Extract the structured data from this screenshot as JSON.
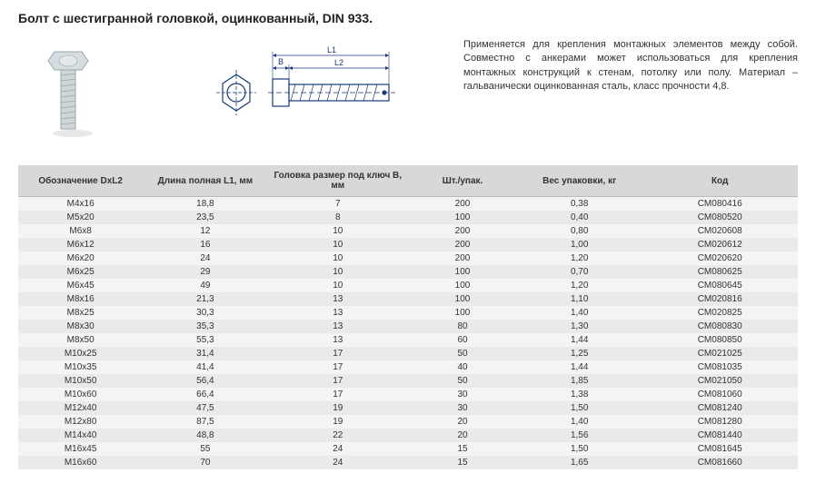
{
  "title": "Болт с шестигранной головкой, оцинкованный, DIN 933.",
  "description": "Применяется для крепления монтажных элементов между собой. Совместно с анкерами может использоваться для крепления монтажных конструкций к стенам, потолку или полу. Материал – гальванически оцинкованная сталь, класс прочности 4,8.",
  "diagram_labels": {
    "B": "B",
    "L1": "L1",
    "L2": "L2"
  },
  "table": {
    "columns": [
      "Обозначение DxL2",
      "Длина полная L1, мм",
      "Головка размер под ключ B, мм",
      "Шт./упак.",
      "Вес упаковки, кг",
      "Код"
    ],
    "col_widths": [
      "16%",
      "16%",
      "18%",
      "14%",
      "16%",
      "20%"
    ],
    "header_bg": "#d8d8d8",
    "row_odd_bg": "#f4f4f4",
    "row_even_bg": "#eaeaea",
    "rows": [
      [
        "M4x16",
        "18,8",
        "7",
        "200",
        "0,38",
        "CM080416"
      ],
      [
        "M5x20",
        "23,5",
        "8",
        "100",
        "0,40",
        "CM080520"
      ],
      [
        "M6x8",
        "12",
        "10",
        "200",
        "0,80",
        "CM020608"
      ],
      [
        "M6x12",
        "16",
        "10",
        "200",
        "1,00",
        "CM020612"
      ],
      [
        "M6x20",
        "24",
        "10",
        "200",
        "1,20",
        "CM020620"
      ],
      [
        "M6x25",
        "29",
        "10",
        "100",
        "0,70",
        "CM080625"
      ],
      [
        "M6x45",
        "49",
        "10",
        "100",
        "1,20",
        "CM080645"
      ],
      [
        "M8x16",
        "21,3",
        "13",
        "100",
        "1,10",
        "CM020816"
      ],
      [
        "M8x25",
        "30,3",
        "13",
        "100",
        "1,40",
        "CM020825"
      ],
      [
        "M8x30",
        "35,3",
        "13",
        "80",
        "1,30",
        "CM080830"
      ],
      [
        "M8x50",
        "55,3",
        "13",
        "60",
        "1,44",
        "CM080850"
      ],
      [
        "M10x25",
        "31,4",
        "17",
        "50",
        "1,25",
        "CM021025"
      ],
      [
        "M10x35",
        "41,4",
        "17",
        "40",
        "1,44",
        "CM081035"
      ],
      [
        "M10x50",
        "56,4",
        "17",
        "50",
        "1,85",
        "CM021050"
      ],
      [
        "M10x60",
        "66,4",
        "17",
        "30",
        "1,38",
        "CM081060"
      ],
      [
        "M12x40",
        "47,5",
        "19",
        "30",
        "1,50",
        "CM081240"
      ],
      [
        "M12x80",
        "87,5",
        "19",
        "20",
        "1,40",
        "CM081280"
      ],
      [
        "M14x40",
        "48,8",
        "22",
        "20",
        "1,56",
        "CM081440"
      ],
      [
        "M16x45",
        "55",
        "24",
        "15",
        "1,50",
        "CM081645"
      ],
      [
        "M16x60",
        "70",
        "24",
        "15",
        "1,65",
        "CM081660"
      ]
    ]
  },
  "colors": {
    "text": "#333333",
    "bolt_fill": "#cfd6d8",
    "bolt_stroke": "#8a9296",
    "diagram_stroke": "#1a3a7a",
    "diagram_fill": "#ffffff",
    "dim_line": "#1a3a7a"
  }
}
